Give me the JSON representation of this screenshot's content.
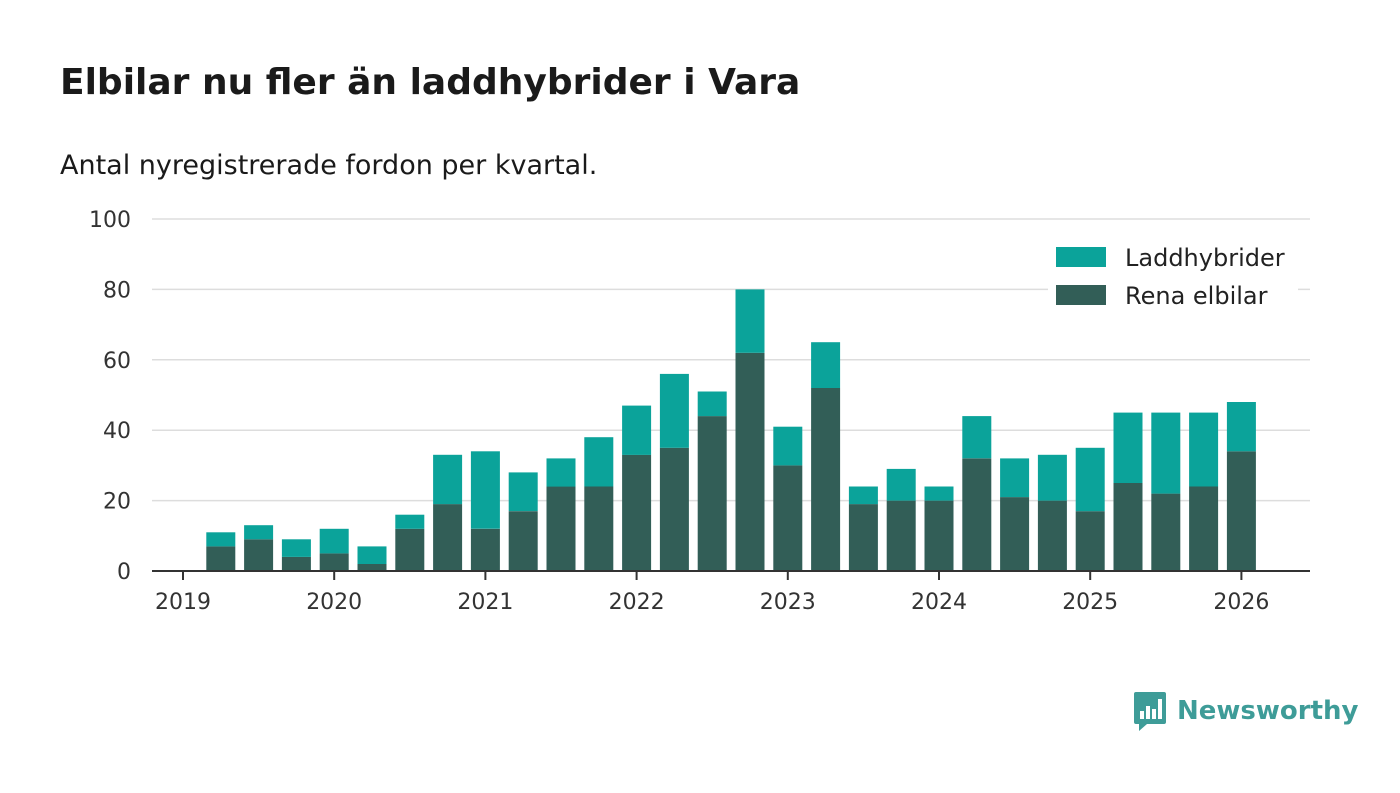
{
  "header": {
    "title": "Elbilar nu fler än laddhybrider i Vara",
    "subtitle": "Antal nyregistrerade fordon per kvartal."
  },
  "brand": {
    "name": "Newsworthy",
    "logo_icon": "newsworthy-logo-icon",
    "color": "#3e9c98"
  },
  "chart_data": {
    "type": "bar",
    "stacked": true,
    "title": "Elbilar nu fler än laddhybrider i Vara",
    "subtitle": "Antal nyregistrerade fordon per kvartal.",
    "xlabel": "",
    "ylabel": "",
    "ylim": [
      0,
      100
    ],
    "yticks": [
      0,
      20,
      40,
      60,
      80,
      100
    ],
    "xticks": [
      "2019",
      "2020",
      "2021",
      "2022",
      "2023",
      "2024",
      "2025",
      "2026"
    ],
    "grid": true,
    "legend": "top-right",
    "categories": [
      "2019 Q2",
      "2019 Q3",
      "2019 Q4",
      "2020 Q1",
      "2020 Q2",
      "2020 Q3",
      "2020 Q4",
      "2021 Q1",
      "2021 Q2",
      "2021 Q3",
      "2021 Q4",
      "2022 Q1",
      "2022 Q2",
      "2022 Q3",
      "2022 Q4",
      "2023 Q1",
      "2023 Q2",
      "2023 Q3",
      "2023 Q4",
      "2024 Q1",
      "2024 Q2",
      "2024 Q3",
      "2024 Q4",
      "2025 Q1",
      "2025 Q2",
      "2025 Q3",
      "2025 Q4",
      "2026 Q1"
    ],
    "series": [
      {
        "name": "Rena elbilar",
        "color": "#325e57",
        "values": [
          7,
          9,
          4,
          5,
          2,
          12,
          19,
          12,
          17,
          24,
          24,
          33,
          35,
          44,
          62,
          30,
          52,
          19,
          20,
          20,
          32,
          21,
          20,
          17,
          25,
          22,
          24,
          34
        ]
      },
      {
        "name": "Laddhybrider",
        "color": "#0ba39a",
        "values": [
          4,
          4,
          5,
          7,
          5,
          4,
          14,
          22,
          11,
          8,
          14,
          14,
          21,
          7,
          18,
          11,
          13,
          5,
          9,
          4,
          12,
          11,
          13,
          18,
          20,
          23,
          21,
          14
        ]
      }
    ]
  }
}
